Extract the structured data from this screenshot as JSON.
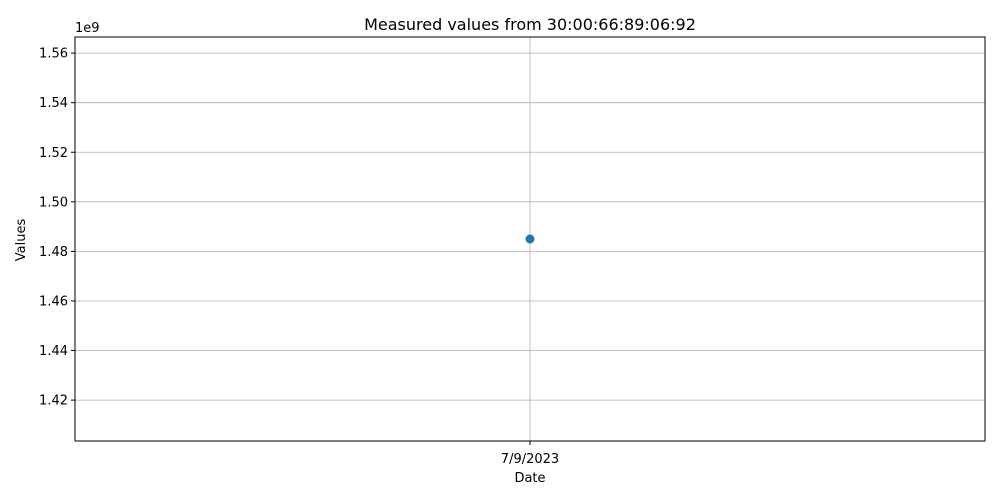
{
  "chart_data": {
    "type": "scatter",
    "title": "Measured values from 30:00:66:89:06:92",
    "xlabel": "Date",
    "ylabel": "Values",
    "y_offset_label": "1e9",
    "x_categories": [
      "7/9/2023"
    ],
    "series": [
      {
        "x": [
          "7/9/2023"
        ],
        "values": [
          1.485
        ],
        "color": "#1f77b4"
      }
    ],
    "y_scale": "1e9",
    "ylim": [
      1.4035,
      1.5665
    ],
    "y_ticks": [
      1.42,
      1.44,
      1.46,
      1.48,
      1.5,
      1.52,
      1.54,
      1.56
    ],
    "y_tick_labels": [
      "1.42",
      "1.44",
      "1.46",
      "1.48",
      "1.50",
      "1.52",
      "1.54",
      "1.56"
    ],
    "grid": true,
    "grid_color": "#b0b0b0"
  }
}
